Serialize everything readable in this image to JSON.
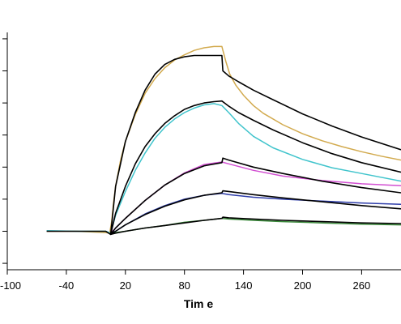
{
  "chart_data": {
    "type": "line",
    "title": "",
    "xlabel": "Tim e",
    "ylabel": "",
    "xlim": [
      -100,
      300
    ],
    "ylim": [
      -0.6,
      3.1
    ],
    "x_ticks": [
      -100,
      -40,
      20,
      80,
      140,
      200,
      260
    ],
    "x_tick_labels": [
      "-100",
      "-40",
      "20",
      "80",
      "140",
      "200",
      "260"
    ],
    "y_ticks": [
      -0.5,
      0,
      0.5,
      1,
      1.5,
      2,
      2.5,
      3
    ],
    "grid": false,
    "legend": "none",
    "series": [
      {
        "color": "#D2AA4E",
        "x": [
          -60,
          -30,
          0,
          4,
          6,
          8,
          10,
          15,
          20,
          30,
          40,
          50,
          60,
          70,
          80,
          90,
          100,
          110,
          118,
          122,
          126,
          132,
          140,
          150,
          160,
          180,
          200,
          220,
          240,
          260,
          280,
          300
        ],
        "y": [
          0,
          0,
          -0.02,
          -0.03,
          0.15,
          0.45,
          0.7,
          1.1,
          1.4,
          1.82,
          2.15,
          2.38,
          2.55,
          2.67,
          2.75,
          2.82,
          2.86,
          2.88,
          2.88,
          2.65,
          2.45,
          2.28,
          2.12,
          1.96,
          1.84,
          1.66,
          1.52,
          1.41,
          1.32,
          1.24,
          1.17,
          1.11
        ]
      },
      {
        "color": "#40C4CC",
        "x": [
          -60,
          -30,
          0,
          5,
          10,
          20,
          30,
          40,
          50,
          60,
          70,
          80,
          90,
          100,
          110,
          118,
          125,
          135,
          150,
          170,
          200,
          230,
          260,
          300
        ],
        "y": [
          0.01,
          0,
          0,
          -0.03,
          0.25,
          0.62,
          0.95,
          1.22,
          1.45,
          1.62,
          1.75,
          1.85,
          1.92,
          1.97,
          1.99,
          1.96,
          1.85,
          1.68,
          1.48,
          1.3,
          1.12,
          0.99,
          0.9,
          0.78
        ]
      },
      {
        "color": "#D24FD2",
        "x": [
          5,
          10,
          20,
          40,
          60,
          80,
          100,
          118,
          125,
          150,
          180,
          220,
          260,
          300
        ],
        "y": [
          -0.03,
          0.05,
          0.2,
          0.48,
          0.72,
          0.91,
          1.04,
          1.08,
          1.05,
          0.95,
          0.86,
          0.79,
          0.74,
          0.71
        ]
      },
      {
        "color": "#2E3DAA",
        "x": [
          5,
          10,
          20,
          40,
          60,
          80,
          100,
          118,
          125,
          150,
          180,
          220,
          260,
          300
        ],
        "y": [
          -0.03,
          0.0,
          0.1,
          0.27,
          0.4,
          0.5,
          0.56,
          0.59,
          0.57,
          0.53,
          0.5,
          0.47,
          0.44,
          0.42
        ]
      },
      {
        "color": "#3A8A3A",
        "x": [
          5,
          10,
          20,
          40,
          60,
          80,
          100,
          118,
          125,
          150,
          180,
          220,
          260,
          300
        ],
        "y": [
          -0.03,
          -0.02,
          0.0,
          0.05,
          0.09,
          0.14,
          0.17,
          0.2,
          0.19,
          0.17,
          0.15,
          0.13,
          0.11,
          0.1
        ]
      },
      {
        "color": "#000000",
        "x": [
          -60,
          -30,
          0,
          5,
          10,
          20,
          30,
          40,
          50,
          60,
          70,
          80,
          90,
          100,
          110,
          118,
          119,
          125,
          135,
          150,
          170,
          200,
          230,
          260,
          300
        ],
        "y": [
          0,
          0,
          0,
          -0.05,
          0.7,
          1.4,
          1.85,
          2.2,
          2.45,
          2.6,
          2.68,
          2.72,
          2.74,
          2.74,
          2.74,
          2.74,
          2.5,
          2.42,
          2.33,
          2.2,
          2.05,
          1.83,
          1.64,
          1.47,
          1.27
        ]
      },
      {
        "color": "#000000",
        "x": [
          5,
          10,
          20,
          30,
          40,
          50,
          60,
          70,
          80,
          90,
          100,
          110,
          118,
          125,
          135,
          150,
          170,
          200,
          230,
          260,
          300
        ],
        "y": [
          -0.05,
          0.28,
          0.7,
          1.05,
          1.32,
          1.52,
          1.68,
          1.8,
          1.9,
          1.96,
          2.0,
          2.02,
          2.03,
          1.95,
          1.85,
          1.73,
          1.58,
          1.38,
          1.21,
          1.07,
          0.92
        ]
      },
      {
        "color": "#000000",
        "x": [
          5,
          10,
          20,
          40,
          60,
          80,
          100,
          118,
          119,
          125,
          150,
          180,
          220,
          260,
          300
        ],
        "y": [
          -0.05,
          0.05,
          0.2,
          0.48,
          0.72,
          0.9,
          1.02,
          1.07,
          1.14,
          1.11,
          1.0,
          0.9,
          0.78,
          0.68,
          0.6
        ]
      },
      {
        "color": "#000000",
        "x": [
          5,
          10,
          20,
          40,
          60,
          80,
          100,
          118,
          119,
          125,
          150,
          180,
          220,
          260,
          300
        ],
        "y": [
          -0.05,
          0.0,
          0.1,
          0.26,
          0.39,
          0.49,
          0.56,
          0.6,
          0.63,
          0.62,
          0.57,
          0.52,
          0.46,
          0.4,
          0.35
        ]
      },
      {
        "color": "#000000",
        "x": [
          5,
          10,
          20,
          40,
          60,
          80,
          100,
          118,
          119,
          125,
          150,
          180,
          220,
          260,
          300
        ],
        "y": [
          -0.05,
          -0.03,
          0.0,
          0.05,
          0.09,
          0.13,
          0.17,
          0.2,
          0.22,
          0.21,
          0.19,
          0.17,
          0.15,
          0.13,
          0.12
        ]
      }
    ]
  }
}
